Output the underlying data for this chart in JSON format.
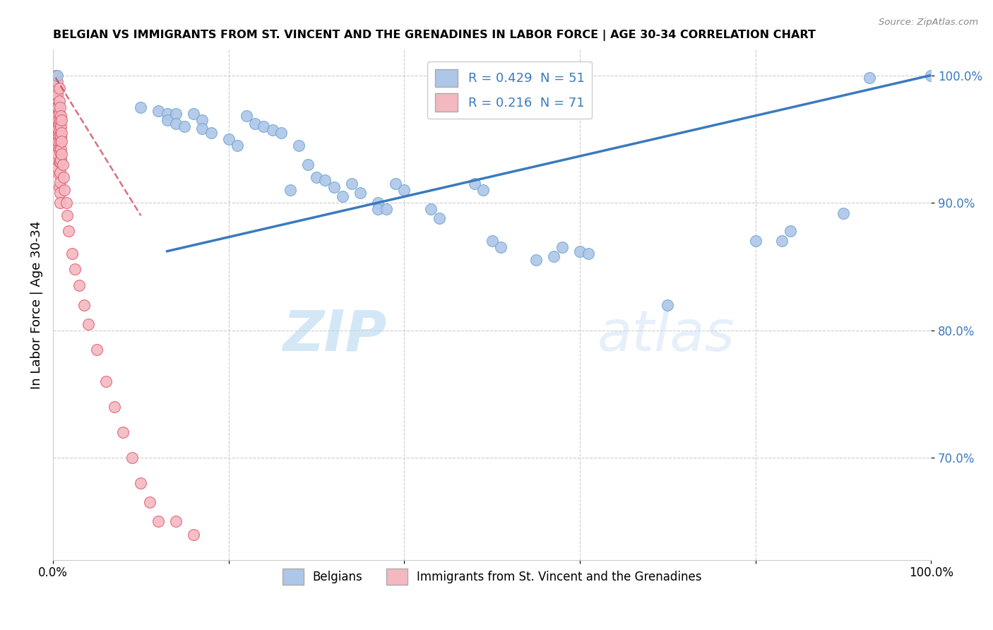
{
  "title": "BELGIAN VS IMMIGRANTS FROM ST. VINCENT AND THE GRENADINES IN LABOR FORCE | AGE 30-34 CORRELATION CHART",
  "source_text": "Source: ZipAtlas.com",
  "ylabel": "In Labor Force | Age 30-34",
  "xlim": [
    0.0,
    1.0
  ],
  "ylim": [
    0.62,
    1.02
  ],
  "yticks": [
    0.7,
    0.8,
    0.9,
    1.0
  ],
  "ytick_labels": [
    "70.0%",
    "80.0%",
    "90.0%",
    "100.0%"
  ],
  "xticks": [
    0.0,
    0.2,
    0.4,
    0.6,
    0.8,
    1.0
  ],
  "xtick_labels": [
    "0.0%",
    "",
    "",
    "",
    "",
    "100.0%"
  ],
  "legend_items": [
    {
      "label": "R = 0.429  N = 51",
      "color": "#aec6e8"
    },
    {
      "label": "R = 0.216  N = 71",
      "color": "#f4b8c1"
    }
  ],
  "bottom_legend": [
    {
      "label": "Belgians",
      "color": "#aec6e8"
    },
    {
      "label": "Immigrants from St. Vincent and the Grenadines",
      "color": "#f4b8c1"
    }
  ],
  "blue_scatter_x": [
    0.005,
    0.1,
    0.12,
    0.13,
    0.13,
    0.14,
    0.14,
    0.15,
    0.16,
    0.17,
    0.17,
    0.18,
    0.2,
    0.21,
    0.22,
    0.23,
    0.24,
    0.25,
    0.26,
    0.27,
    0.28,
    0.29,
    0.3,
    0.31,
    0.32,
    0.33,
    0.34,
    0.35,
    0.37,
    0.37,
    0.38,
    0.39,
    0.4,
    0.43,
    0.44,
    0.48,
    0.49,
    0.5,
    0.51,
    0.55,
    0.57,
    0.58,
    0.6,
    0.61,
    0.7,
    0.8,
    0.83,
    0.84,
    0.9,
    0.93,
    1.0
  ],
  "blue_scatter_y": [
    1.0,
    0.975,
    0.972,
    0.97,
    0.965,
    0.97,
    0.962,
    0.96,
    0.97,
    0.965,
    0.958,
    0.955,
    0.95,
    0.945,
    0.968,
    0.962,
    0.96,
    0.957,
    0.955,
    0.91,
    0.945,
    0.93,
    0.92,
    0.918,
    0.912,
    0.905,
    0.915,
    0.908,
    0.9,
    0.895,
    0.895,
    0.915,
    0.91,
    0.895,
    0.888,
    0.915,
    0.91,
    0.87,
    0.865,
    0.855,
    0.858,
    0.865,
    0.862,
    0.86,
    0.82,
    0.87,
    0.87,
    0.878,
    0.892,
    0.998,
    1.0
  ],
  "pink_scatter_x": [
    0.003,
    0.003,
    0.003,
    0.003,
    0.003,
    0.004,
    0.004,
    0.004,
    0.004,
    0.004,
    0.005,
    0.005,
    0.005,
    0.005,
    0.005,
    0.005,
    0.005,
    0.005,
    0.006,
    0.006,
    0.006,
    0.006,
    0.007,
    0.007,
    0.007,
    0.007,
    0.007,
    0.007,
    0.007,
    0.007,
    0.007,
    0.008,
    0.008,
    0.008,
    0.008,
    0.008,
    0.008,
    0.008,
    0.008,
    0.008,
    0.008,
    0.009,
    0.009,
    0.009,
    0.009,
    0.009,
    0.01,
    0.01,
    0.01,
    0.01,
    0.011,
    0.012,
    0.013,
    0.015,
    0.016,
    0.018,
    0.022,
    0.025,
    0.03,
    0.035,
    0.04,
    0.05,
    0.06,
    0.07,
    0.08,
    0.09,
    0.1,
    0.11,
    0.12,
    0.14,
    0.16
  ],
  "pink_scatter_y": [
    1.0,
    0.985,
    0.975,
    0.965,
    0.95,
    0.99,
    0.975,
    0.96,
    0.95,
    0.94,
    0.995,
    0.985,
    0.975,
    0.968,
    0.958,
    0.948,
    0.938,
    0.928,
    0.975,
    0.965,
    0.958,
    0.948,
    0.99,
    0.98,
    0.97,
    0.962,
    0.952,
    0.942,
    0.932,
    0.922,
    0.912,
    0.975,
    0.965,
    0.958,
    0.948,
    0.94,
    0.932,
    0.924,
    0.916,
    0.908,
    0.9,
    0.968,
    0.96,
    0.952,
    0.942,
    0.934,
    0.965,
    0.955,
    0.948,
    0.938,
    0.93,
    0.92,
    0.91,
    0.9,
    0.89,
    0.878,
    0.86,
    0.848,
    0.835,
    0.82,
    0.805,
    0.785,
    0.76,
    0.74,
    0.72,
    0.7,
    0.68,
    0.665,
    0.65,
    0.65,
    0.64
  ],
  "blue_line_x": [
    0.13,
    1.0
  ],
  "blue_line_y": [
    0.862,
    1.0
  ],
  "pink_line_x": [
    0.003,
    0.1
  ],
  "pink_line_y": [
    0.998,
    0.89
  ],
  "blue_scatter_color": "#aec6e8",
  "blue_scatter_edge": "#6fa8d0",
  "pink_scatter_color": "#f4b8c1",
  "pink_scatter_edge": "#e06070",
  "blue_line_color": "#3a7abf",
  "pink_line_color": "#cc3344",
  "watermark_zip": "ZIP",
  "watermark_atlas": "atlas",
  "grid_color": "#cccccc",
  "background_color": "#ffffff"
}
